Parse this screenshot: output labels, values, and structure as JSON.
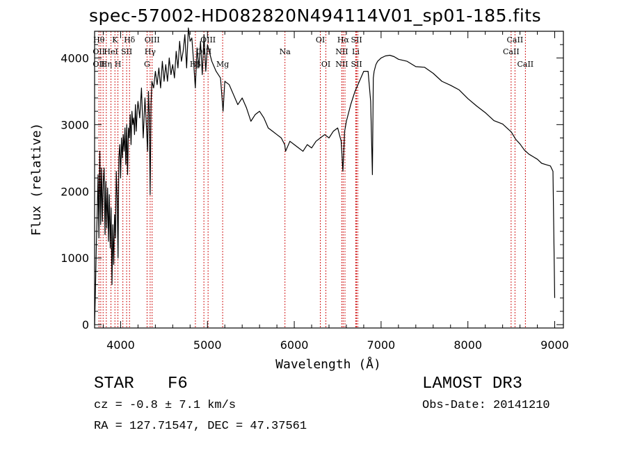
{
  "chart_data": {
    "type": "line",
    "title": "spec-57002-HD082820N494114V01_sp01-185.fits",
    "xlabel": "Wavelength (Å)",
    "ylabel": "Flux (relative)",
    "xlim": [
      3700,
      9100
    ],
    "ylim": [
      -50,
      4400
    ],
    "xticks": [
      4000,
      5000,
      6000,
      7000,
      8000,
      9000
    ],
    "yticks": [
      0,
      1000,
      2000,
      3000,
      4000
    ],
    "line_color": "#000000",
    "marker_color": "#cc0000",
    "series": [
      {
        "name": "flux",
        "x": [
          3700,
          3710,
          3720,
          3730,
          3740,
          3750,
          3760,
          3770,
          3780,
          3790,
          3800,
          3810,
          3820,
          3830,
          3840,
          3850,
          3860,
          3870,
          3880,
          3890,
          3900,
          3910,
          3920,
          3930,
          3940,
          3950,
          3960,
          3970,
          3980,
          3990,
          4000,
          4010,
          4020,
          4030,
          4040,
          4050,
          4060,
          4070,
          4080,
          4090,
          4100,
          4110,
          4120,
          4130,
          4140,
          4150,
          4160,
          4170,
          4180,
          4190,
          4200,
          4220,
          4240,
          4260,
          4280,
          4300,
          4310,
          4320,
          4330,
          4340,
          4350,
          4360,
          4380,
          4400,
          4420,
          4440,
          4460,
          4480,
          4500,
          4520,
          4540,
          4560,
          4580,
          4600,
          4620,
          4640,
          4660,
          4680,
          4700,
          4720,
          4740,
          4760,
          4780,
          4800,
          4820,
          4840,
          4860,
          4880,
          4900,
          4920,
          4940,
          4960,
          4980,
          5000,
          5050,
          5100,
          5150,
          5180,
          5200,
          5250,
          5300,
          5350,
          5400,
          5450,
          5500,
          5550,
          5600,
          5650,
          5700,
          5750,
          5800,
          5850,
          5890,
          5900,
          5950,
          6000,
          6050,
          6100,
          6150,
          6200,
          6250,
          6300,
          6350,
          6400,
          6450,
          6500,
          6540,
          6560,
          6580,
          6600,
          6650,
          6700,
          6750,
          6800,
          6850,
          6880,
          6900,
          6910,
          6920,
          6940,
          6960,
          7000,
          7050,
          7100,
          7150,
          7200,
          7300,
          7400,
          7500,
          7600,
          7700,
          7800,
          7900,
          8000,
          8100,
          8200,
          8300,
          8400,
          8500,
          8550,
          8600,
          8650,
          8700,
          8750,
          8800,
          8850,
          8900,
          8950,
          8980,
          9000
        ],
        "y": [
          0,
          500,
          1200,
          1650,
          2250,
          1300,
          2600,
          1500,
          2350,
          1550,
          2150,
          2350,
          1350,
          2150,
          1450,
          2050,
          1250,
          1950,
          1150,
          1750,
          600,
          1500,
          900,
          1650,
          1300,
          2300,
          1900,
          1000,
          2500,
          2700,
          2200,
          2800,
          2500,
          2850,
          2600,
          2950,
          2400,
          3000,
          2250,
          2950,
          2800,
          3150,
          2700,
          3200,
          3000,
          3100,
          2850,
          3300,
          2900,
          3200,
          3350,
          3100,
          3550,
          2800,
          3400,
          2900,
          2600,
          3500,
          3150,
          1950,
          3300,
          3650,
          3550,
          3800,
          3600,
          3850,
          3550,
          3950,
          3650,
          3900,
          3650,
          4000,
          3750,
          3900,
          3700,
          4100,
          3850,
          4250,
          3950,
          4100,
          4350,
          3850,
          4450,
          4250,
          4300,
          3950,
          3550,
          4150,
          3850,
          4250,
          3750,
          4350,
          3800,
          4200,
          3950,
          3800,
          3700,
          3200,
          3650,
          3600,
          3450,
          3300,
          3400,
          3250,
          3050,
          3150,
          3200,
          3100,
          2950,
          2900,
          2850,
          2800,
          2700,
          2600,
          2750,
          2700,
          2650,
          2600,
          2700,
          2650,
          2750,
          2800,
          2850,
          2800,
          2900,
          2950,
          2750,
          2300,
          2900,
          3050,
          3300,
          3500,
          3650,
          3800,
          3800,
          3350,
          2250,
          3700,
          3800,
          3900,
          3950,
          4000,
          4030,
          4040,
          4020,
          3980,
          3950,
          3870,
          3860,
          3770,
          3650,
          3590,
          3520,
          3390,
          3280,
          3180,
          3060,
          3010,
          2890,
          2780,
          2710,
          2620,
          2560,
          2520,
          2480,
          2420,
          2400,
          2380,
          2300,
          400
        ]
      }
    ],
    "line_markers": [
      {
        "wavelength": 3750,
        "labels": [
          "Hθ",
          "OII",
          "OII"
        ]
      },
      {
        "wavelength": 3771
      },
      {
        "wavelength": 3798
      },
      {
        "wavelength": 3835,
        "labels": [
          "",
          "",
          "Hη"
        ]
      },
      {
        "wavelength": 3889,
        "labels": [
          "",
          "HeI"
        ]
      },
      {
        "wavelength": 3934,
        "labels": [
          "K"
        ]
      },
      {
        "wavelength": 3969,
        "labels": [
          "",
          "",
          "H"
        ]
      },
      {
        "wavelength": 4026
      },
      {
        "wavelength": 4069,
        "labels": [
          "",
          "SII"
        ]
      },
      {
        "wavelength": 4102,
        "labels": [
          "Hδ"
        ]
      },
      {
        "wavelength": 4304,
        "labels": [
          "",
          "",
          "G"
        ]
      },
      {
        "wavelength": 4340,
        "labels": [
          "",
          "Hγ"
        ]
      },
      {
        "wavelength": 4363,
        "labels": [
          "OIII"
        ]
      },
      {
        "wavelength": 4861,
        "labels": [
          "",
          "",
          "Hβ"
        ]
      },
      {
        "wavelength": 4959,
        "labels": [
          "",
          "OIII"
        ]
      },
      {
        "wavelength": 5007,
        "labels": [
          "OIII"
        ]
      },
      {
        "wavelength": 5175,
        "labels": [
          "",
          "",
          "Mg"
        ]
      },
      {
        "wavelength": 5893,
        "labels": [
          "",
          "Na"
        ]
      },
      {
        "wavelength": 6300,
        "labels": [
          "OI"
        ]
      },
      {
        "wavelength": 6364,
        "labels": [
          "",
          "",
          "OI"
        ]
      },
      {
        "wavelength": 6548,
        "labels": [
          "",
          "NII",
          "NII"
        ]
      },
      {
        "wavelength": 6563,
        "labels": [
          "Hα"
        ]
      },
      {
        "wavelength": 6584
      },
      {
        "wavelength": 6708,
        "labels": [
          "",
          "Li"
        ]
      },
      {
        "wavelength": 6717,
        "labels": [
          "SII",
          "",
          "SII"
        ]
      },
      {
        "wavelength": 6731
      },
      {
        "wavelength": 8498,
        "labels": [
          "",
          "CaII"
        ]
      },
      {
        "wavelength": 8542,
        "labels": [
          "CaII"
        ]
      },
      {
        "wavelength": 8662,
        "labels": [
          "",
          "",
          "CaII"
        ]
      }
    ]
  },
  "info": {
    "class": "STAR",
    "subclass": "F6",
    "survey": "LAMOST DR3",
    "cz": "cz = -0.8 ± 7.1 km/s",
    "obs_date": "Obs-Date: 20141210",
    "coords": "RA = 127.71547, DEC =  47.37561"
  }
}
